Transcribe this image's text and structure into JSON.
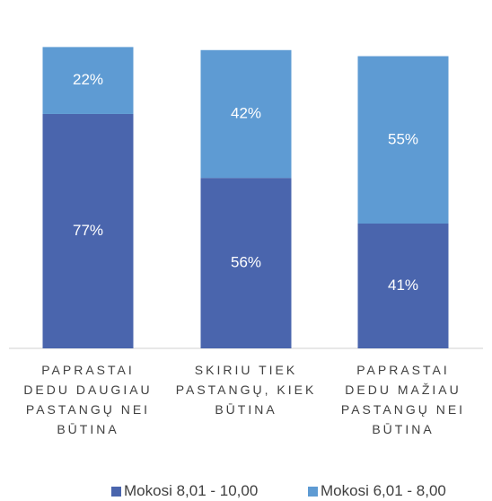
{
  "chart_data": {
    "type": "stacked_bar",
    "categories": [
      "PAPRASTAI DEDU DAUGIAU PASTANGŲ NEI BŪTINA",
      "SKIRIU TIEK PASTANGŲ, KIEK BŪTINA",
      "PAPRASTAI DEDU MAŽIAU PASTANGŲ NEI BŪTINA"
    ],
    "series": [
      {
        "name": "Mokosi 8,01 - 10,00",
        "color": "#4a65ad",
        "values": [
          77,
          56,
          41
        ],
        "value_labels": [
          "77%",
          "56%",
          "41%"
        ]
      },
      {
        "name": "Mokosi 6,01 - 8,00",
        "color": "#5e9bd3",
        "values": [
          22,
          42,
          55
        ],
        "value_labels": [
          "22%",
          "42%",
          "55%"
        ]
      }
    ],
    "legend": "bottom"
  }
}
